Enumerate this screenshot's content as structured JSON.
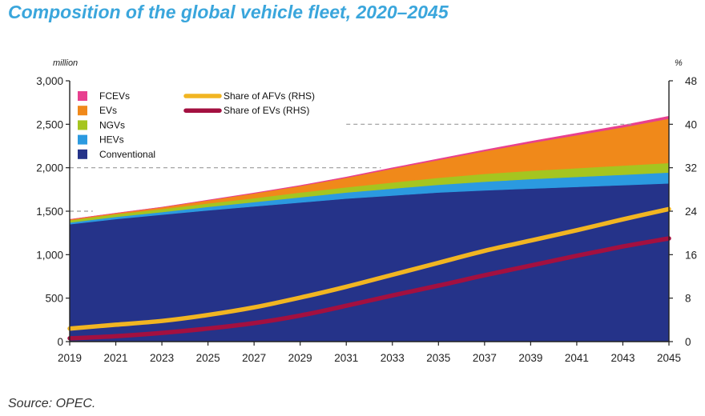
{
  "title": "Composition of the global vehicle fleet, 2020–2045",
  "source": "Source: OPEC.",
  "colors": {
    "Conventional": "#253389",
    "HEVs": "#2b9ae0",
    "NGVs": "#a5c520",
    "EVs": "#f0891a",
    "FCEVs": "#e8408f",
    "Share of AFVs (RHS)": "#f1b522",
    "Share of EVs (RHS)": "#a31040"
  },
  "chart_data": {
    "type": "area",
    "left_unit": "million",
    "right_unit": "%",
    "x": [
      2019,
      2021,
      2023,
      2025,
      2027,
      2029,
      2031,
      2033,
      2035,
      2037,
      2039,
      2041,
      2043,
      2045
    ],
    "x_ticks": [
      "2019",
      "2021",
      "2023",
      "2025",
      "2027",
      "2029",
      "2031",
      "2033",
      "2035",
      "2037",
      "2039",
      "2041",
      "2043",
      "2045"
    ],
    "ylim": [
      0,
      3000
    ],
    "y_ticks": [
      "0",
      "500",
      "1,000",
      "1,500",
      "2,000",
      "2,500",
      "3,000"
    ],
    "y2lim": [
      0,
      48
    ],
    "y2_ticks": [
      "0",
      "8",
      "16",
      "24",
      "32",
      "40",
      "48"
    ],
    "grid": "dashed reference lines at 1,500, 2,000 and 2,500 (partial)",
    "legend_position": "top-left",
    "stacked_series": [
      {
        "name": "Conventional",
        "values": [
          1350,
          1410,
          1460,
          1510,
          1555,
          1600,
          1645,
          1680,
          1715,
          1740,
          1760,
          1780,
          1800,
          1820
        ]
      },
      {
        "name": "HEVs",
        "values": [
          20,
          25,
          30,
          40,
          50,
          60,
          70,
          80,
          90,
          100,
          110,
          115,
          120,
          125
        ]
      },
      {
        "name": "NGVs",
        "values": [
          25,
          30,
          35,
          40,
          45,
          55,
          60,
          70,
          80,
          90,
          95,
          100,
          105,
          110
        ]
      },
      {
        "name": "EVs",
        "values": [
          10,
          12,
          20,
          35,
          55,
          75,
          110,
          160,
          205,
          260,
          320,
          380,
          440,
          510
        ]
      },
      {
        "name": "FCEVs",
        "values": [
          0,
          1,
          2,
          3,
          5,
          6,
          8,
          10,
          12,
          15,
          18,
          21,
          24,
          28
        ]
      }
    ],
    "line_series": [
      {
        "name": "Share of AFVs (RHS)",
        "axis": "right",
        "values": [
          2.4,
          3.1,
          3.8,
          4.9,
          6.3,
          8.1,
          10.1,
          12.3,
          14.5,
          16.7,
          18.6,
          20.5,
          22.5,
          24.4
        ]
      },
      {
        "name": "Share of EVs (RHS)",
        "axis": "right",
        "values": [
          0.6,
          1.0,
          1.6,
          2.4,
          3.4,
          4.8,
          6.6,
          8.5,
          10.3,
          12.2,
          14.0,
          15.8,
          17.5,
          19.0
        ]
      }
    ],
    "legend": {
      "areas": [
        "FCEVs",
        "EVs",
        "NGVs",
        "HEVs",
        "Conventional"
      ],
      "lines": [
        "Share of AFVs (RHS)",
        "Share of EVs (RHS)"
      ]
    }
  }
}
